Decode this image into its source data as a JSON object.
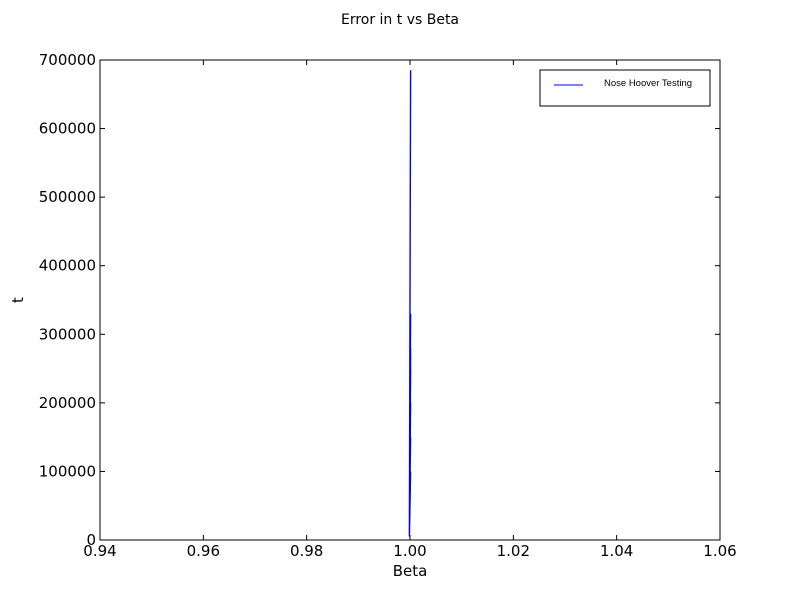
{
  "chart_data": {
    "type": "line",
    "title": "Error in t vs Beta",
    "xlabel": "Beta",
    "ylabel": "t",
    "xlim": [
      0.94,
      1.06
    ],
    "ylim": [
      0,
      700000
    ],
    "xticks": [
      "0.94",
      "0.96",
      "0.98",
      "1.00",
      "1.02",
      "1.04",
      "1.06"
    ],
    "yticks": [
      "0",
      "100000",
      "200000",
      "300000",
      "400000",
      "500000",
      "600000",
      "700000"
    ],
    "grid": false,
    "legend_position": "top-right",
    "series": [
      {
        "name": "Nose Hoover Testing",
        "color": "#0000ff",
        "x": [
          1.0,
          1.0,
          1.0,
          1.0,
          1.0,
          1.0,
          1.0,
          1.0,
          1.0,
          1.0,
          1.0,
          1.0,
          1.0,
          1.0,
          1.0,
          1.0,
          1.0
        ],
        "y": [
          10000,
          280000,
          15000,
          270000,
          20000,
          330000,
          12000,
          685000,
          8000,
          250000,
          30000,
          200000,
          40000,
          150000,
          25000,
          100000,
          5000
        ]
      }
    ]
  }
}
